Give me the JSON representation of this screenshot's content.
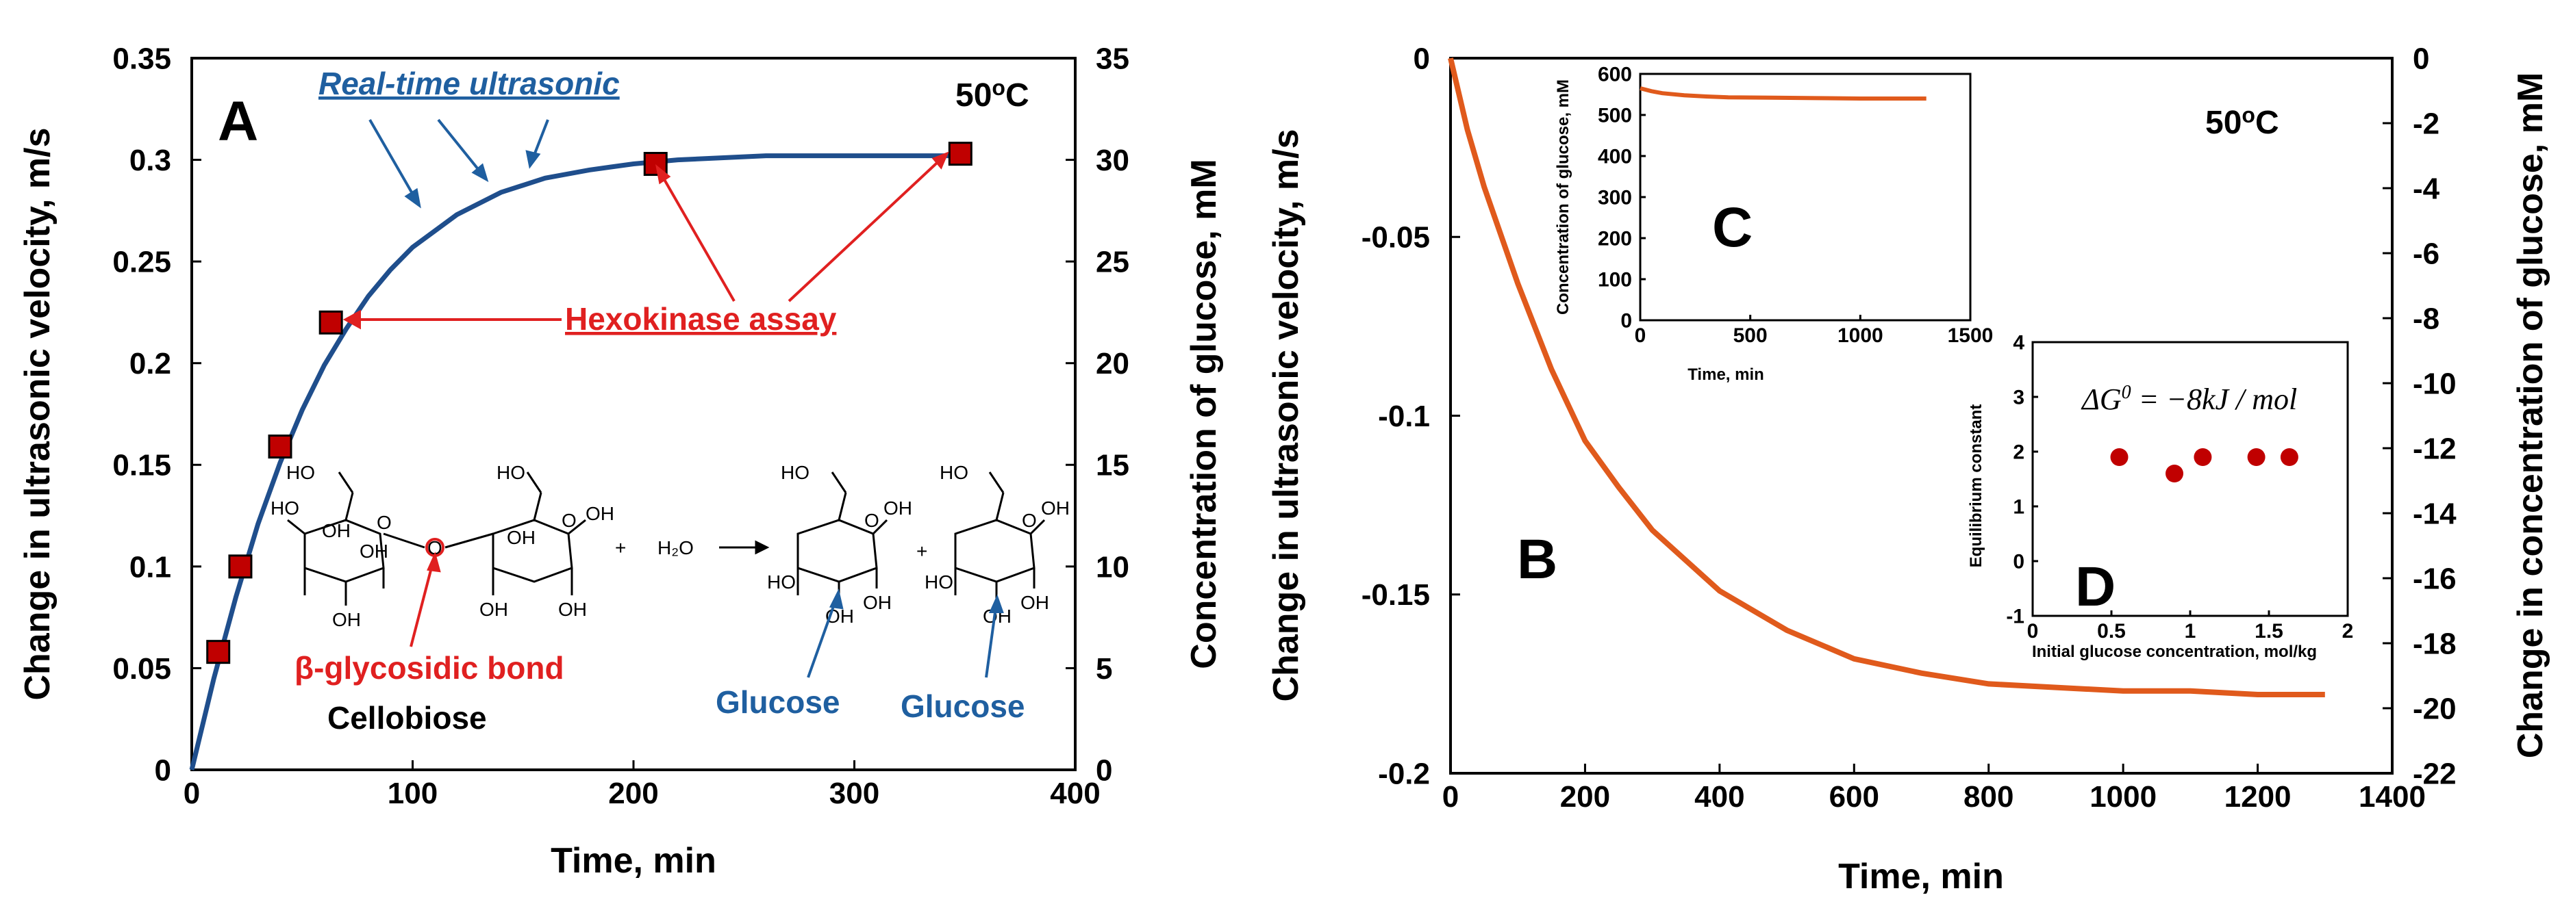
{
  "chart_data": [
    {
      "panel": "A",
      "type": "line+scatter",
      "title": "50oC",
      "temperature": {
        "value": "50",
        "sup": "o",
        "unit": "C"
      },
      "xlabel": "Time, min",
      "ylabel": "Change in ultrasonic velocity, m/s",
      "y2label": "Concentration of glucose, mM",
      "xlim": [
        0,
        400
      ],
      "ylim": [
        0,
        0.35
      ],
      "y2lim": [
        0,
        35
      ],
      "xticks": [
        "0",
        "100",
        "200",
        "300",
        "400"
      ],
      "yticks": [
        "0",
        "0.05",
        "0.1",
        "0.15",
        "0.2",
        "0.25",
        "0.3",
        "0.35"
      ],
      "y2ticks": [
        "0",
        "5",
        "10",
        "15",
        "20",
        "25",
        "30",
        "35"
      ],
      "series": [
        {
          "name": "Real-time ultrasonic",
          "color": "#1f4e8c",
          "x": [
            0,
            10,
            20,
            30,
            40,
            50,
            60,
            70,
            80,
            90,
            100,
            120,
            140,
            160,
            180,
            200,
            220,
            240,
            260,
            280,
            300,
            320,
            340,
            350
          ],
          "y": [
            0,
            0.045,
            0.085,
            0.121,
            0.151,
            0.177,
            0.199,
            0.217,
            0.233,
            0.246,
            0.257,
            0.273,
            0.284,
            0.291,
            0.295,
            0.298,
            0.3,
            0.301,
            0.302,
            0.302,
            0.302,
            0.302,
            0.302,
            0.302
          ]
        },
        {
          "name": "Hexokinase assay",
          "color": "#c00000",
          "x": [
            12,
            22,
            40,
            63,
            210,
            348
          ],
          "y": [
            5.8,
            10,
            15.9,
            22,
            29.8,
            30.3
          ]
        }
      ],
      "annotations": {
        "realtime": "Real-time ultrasonic",
        "hexokinase": "Hexokinase assay",
        "bond": "β-glycosidic bond",
        "cellobiose": "Cellobiose",
        "glucose1": "Glucose",
        "glucose2": "Glucose",
        "oh": "OH",
        "ho": "HO",
        "h2o": "H₂O",
        "plus": "+"
      }
    },
    {
      "panel": "B",
      "type": "line",
      "title": "50oC",
      "temperature": {
        "value": "50",
        "sup": "o",
        "unit": "C"
      },
      "xlabel": "Time, min",
      "ylabel": "Change in ultrasonic velocity, m/s",
      "y2label": "Change in concentration of glucose, mM",
      "xlim": [
        0,
        1400
      ],
      "ylim": [
        -0.2,
        0
      ],
      "y2lim": [
        -22,
        0
      ],
      "xticks": [
        "0",
        "200",
        "400",
        "600",
        "800",
        "1000",
        "1200",
        "1400"
      ],
      "yticks": [
        "0",
        "-0.05",
        "-0.1",
        "-0.15",
        "-0.2"
      ],
      "y2ticks": [
        "0",
        "-2",
        "-4",
        "-6",
        "-8",
        "-10",
        "-12",
        "-14",
        "-16",
        "-18",
        "-20",
        "-22"
      ],
      "series": [
        {
          "name": "ultrasonic velocity",
          "color": "#e05a1c",
          "x": [
            0,
            25,
            50,
            100,
            150,
            200,
            250,
            300,
            400,
            500,
            600,
            700,
            800,
            900,
            1000,
            1100,
            1200,
            1300
          ],
          "y": [
            0,
            -0.02,
            -0.036,
            -0.063,
            -0.087,
            -0.107,
            -0.12,
            -0.132,
            -0.149,
            -0.16,
            -0.168,
            -0.172,
            -0.175,
            -0.176,
            -0.177,
            -0.177,
            -0.178,
            -0.178
          ]
        }
      ]
    },
    {
      "panel": "C",
      "type": "line",
      "xlabel": "Time, min",
      "ylabel": "Concentration of glucose, mM",
      "xlim": [
        0,
        1500
      ],
      "ylim": [
        0,
        600
      ],
      "xticks": [
        "0",
        "500",
        "1000",
        "1500"
      ],
      "yticks": [
        "0",
        "100",
        "200",
        "300",
        "400",
        "500",
        "600"
      ],
      "series": [
        {
          "name": "glucose concentration",
          "color": "#e05a1c",
          "x": [
            0,
            50,
            100,
            200,
            300,
            400,
            600,
            800,
            1000,
            1200,
            1300
          ],
          "y": [
            565,
            558,
            553,
            548,
            545,
            543,
            542,
            541,
            540,
            540,
            540
          ]
        }
      ]
    },
    {
      "panel": "D",
      "type": "scatter",
      "xlabel": "Initial glucose concentration, mol/kg",
      "ylabel": "Equilibrium constant",
      "xlim": [
        0,
        2
      ],
      "ylim": [
        -1,
        4
      ],
      "xticks": [
        "0",
        "0.5",
        "1",
        "1.5",
        "2"
      ],
      "yticks": [
        "-1",
        "0",
        "1",
        "2",
        "3",
        "4"
      ],
      "equation": "ΔG⁰ = −8kJ / mol",
      "equation_parts": {
        "lhs": "ΔG",
        "sup": "0",
        "rhs": " = −8kJ / mol"
      },
      "series": [
        {
          "name": "equilibrium constant",
          "color": "#c00000",
          "x": [
            0.55,
            0.9,
            1.08,
            1.42,
            1.63
          ],
          "y": [
            1.9,
            1.6,
            1.9,
            1.9,
            1.9
          ]
        }
      ]
    }
  ]
}
